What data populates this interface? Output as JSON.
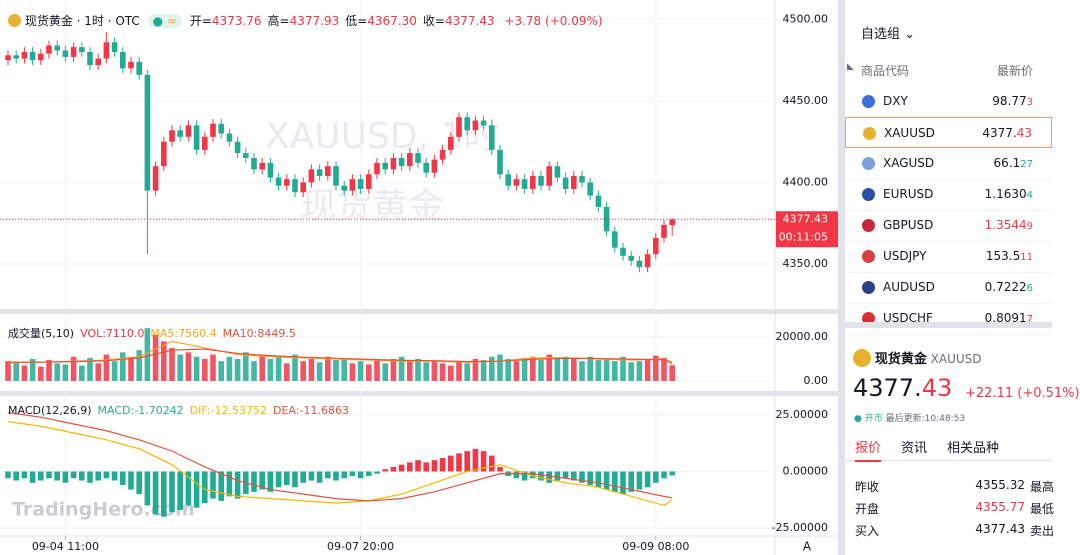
{
  "header": {
    "title": "现货黄金 · 1时 · OTC",
    "pill": "≈",
    "ohlc": [
      {
        "label": "开=",
        "value": "4373.76"
      },
      {
        "label": "高=",
        "value": "4377.93"
      },
      {
        "label": "低=",
        "value": "4367.30"
      },
      {
        "label": "收=",
        "value": "4377.43"
      }
    ],
    "change": "+3.78 (+0.09%)"
  },
  "watermark": {
    "symbol": "XAUUSD, 1时",
    "name": "现货黄金"
  },
  "logo": "TradingHero.com",
  "countdown": "00:11:05",
  "auto_button": "A",
  "chart_data": [
    {
      "type": "candlestick",
      "up_color": "#f23645",
      "down_color": "#22ab94",
      "last_price_line": true,
      "open": [
        4475,
        4478,
        4476,
        4480,
        4475,
        4479,
        4484,
        4481,
        4477,
        4483,
        4480,
        4472,
        4476,
        4486,
        4480,
        4470,
        4474,
        4466,
        4395,
        4410,
        4425,
        4432,
        4428,
        4435,
        4420,
        4428,
        4436,
        4430,
        4425,
        4418,
        4415,
        4408,
        4412,
        4403,
        4398,
        4402,
        4394,
        4400,
        4408,
        4404,
        4410,
        4398,
        4395,
        4402,
        4396,
        4405,
        4412,
        4408,
        4415,
        4410,
        4418,
        4412,
        4406,
        4414,
        4420,
        4428,
        4440,
        4432,
        4438,
        4435,
        4420,
        4405,
        4398,
        4402,
        4396,
        4404,
        4398,
        4410,
        4403,
        4396,
        4404,
        4400,
        4392,
        4385,
        4370,
        4360,
        4355,
        4352,
        4348,
        4356,
        4366,
        4373.76
      ],
      "high": [
        4481,
        4481,
        4483,
        4483,
        4482,
        4487,
        4487,
        4484,
        4486,
        4486,
        4483,
        4479,
        4492,
        4489,
        4483,
        4477,
        4477,
        4469,
        4413,
        4428,
        4435,
        4435,
        4438,
        4438,
        4431,
        4439,
        4439,
        4433,
        4428,
        4421,
        4418,
        4415,
        4415,
        4406,
        4405,
        4405,
        4403,
        4411,
        4411,
        4413,
        4413,
        4401,
        4405,
        4405,
        4408,
        4415,
        4415,
        4418,
        4418,
        4421,
        4421,
        4415,
        4417,
        4423,
        4431,
        4443,
        4443,
        4441,
        4441,
        4438,
        4423,
        4408,
        4405,
        4405,
        4407,
        4407,
        4413,
        4413,
        4406,
        4407,
        4407,
        4403,
        4395,
        4388,
        4373,
        4363,
        4358,
        4355,
        4359,
        4369,
        4377,
        4377.93
      ],
      "low": [
        4472,
        4473,
        4473,
        4472,
        4472,
        4476,
        4478,
        4474,
        4474,
        4477,
        4469,
        4469,
        4473,
        4477,
        4467,
        4467,
        4463,
        4356,
        4392,
        4407,
        4422,
        4425,
        4425,
        4417,
        4417,
        4425,
        4427,
        4422,
        4415,
        4412,
        4405,
        4405,
        4400,
        4395,
        4395,
        4391,
        4391,
        4397,
        4401,
        4401,
        4395,
        4392,
        4392,
        4393,
        4393,
        4402,
        4405,
        4405,
        4407,
        4407,
        4409,
        4403,
        4403,
        4411,
        4417,
        4425,
        4429,
        4429,
        4432,
        4417,
        4402,
        4395,
        4395,
        4393,
        4393,
        4395,
        4395,
        4400,
        4393,
        4393,
        4397,
        4389,
        4382,
        4367,
        4357,
        4352,
        4349,
        4345,
        4345,
        4353,
        4363,
        4367.3
      ],
      "close": [
        4478,
        4476,
        4480,
        4475,
        4479,
        4484,
        4481,
        4477,
        4483,
        4480,
        4472,
        4476,
        4486,
        4480,
        4470,
        4474,
        4466,
        4395,
        4410,
        4425,
        4432,
        4428,
        4435,
        4420,
        4428,
        4436,
        4430,
        4425,
        4418,
        4415,
        4408,
        4412,
        4403,
        4398,
        4402,
        4394,
        4400,
        4408,
        4404,
        4410,
        4398,
        4395,
        4402,
        4396,
        4405,
        4412,
        4408,
        4415,
        4410,
        4418,
        4412,
        4406,
        4414,
        4420,
        4428,
        4440,
        4432,
        4438,
        4435,
        4420,
        4405,
        4398,
        4402,
        4396,
        4404,
        4398,
        4410,
        4403,
        4396,
        4404,
        4400,
        4392,
        4385,
        4370,
        4360,
        4355,
        4352,
        4348,
        4356,
        4366,
        4374,
        4377.43
      ],
      "ylim": [
        4323,
        4507
      ],
      "yticks": [
        {
          "value": 4500,
          "label": "4500.00"
        },
        {
          "value": 4450,
          "label": "4450.00"
        },
        {
          "value": 4400,
          "label": "4400.00"
        },
        {
          "value": 4350,
          "label": "4350.00"
        }
      ]
    },
    {
      "type": "volume",
      "legend": [
        {
          "text": "成交量(5,10)",
          "color": "#131722"
        },
        {
          "text": "VOL:7110.0",
          "color": "#f23645"
        },
        {
          "text": "MA5:7560.4",
          "color": "#f5a623"
        },
        {
          "text": "MA10:8449.5",
          "color": "#e0533d"
        }
      ],
      "values": [
        9000,
        8500,
        7000,
        10000,
        6500,
        9500,
        8000,
        7500,
        11000,
        7000,
        10500,
        8000,
        12000,
        9000,
        13000,
        11000,
        14000,
        24000,
        21000,
        18000,
        15000,
        12000,
        13000,
        11000,
        10000,
        12000,
        9000,
        11000,
        10000,
        13000,
        9000,
        12000,
        10000,
        11000,
        8000,
        12000,
        9000,
        10000,
        8500,
        11000,
        9500,
        10000,
        8000,
        9000,
        7500,
        9500,
        8000,
        10000,
        11000,
        9000,
        10000,
        8500,
        9000,
        8000,
        7000,
        9000,
        8000,
        10000,
        9500,
        11000,
        12000,
        10000,
        9000,
        10500,
        11000,
        9500,
        12000,
        10000,
        11000,
        10500,
        9000,
        11000,
        9500,
        10000,
        9000,
        11000,
        8500,
        9000,
        10000,
        11500,
        10500,
        7110
      ],
      "series": [
        {
          "color": "#f5a623",
          "x": [
            0,
            4,
            8,
            12,
            16,
            20,
            24,
            28,
            32,
            36,
            40,
            44,
            48,
            52,
            56,
            60,
            64,
            68,
            72,
            76,
            80,
            81
          ],
          "values": [
            8200,
            8500,
            9000,
            9500,
            11000,
            18000,
            15000,
            12000,
            11000,
            10500,
            10000,
            9500,
            9000,
            9000,
            8500,
            9000,
            10500,
            10500,
            10000,
            9500,
            10000,
            7560.4
          ]
        },
        {
          "color": "#e0533d",
          "x": [
            0,
            4,
            8,
            12,
            16,
            20,
            24,
            28,
            32,
            36,
            40,
            44,
            48,
            52,
            56,
            60,
            64,
            68,
            72,
            76,
            80,
            81
          ],
          "values": [
            8500,
            8600,
            8800,
            9200,
            10500,
            14000,
            14500,
            12500,
            11500,
            10800,
            10300,
            9800,
            9400,
            9200,
            8800,
            9000,
            9800,
            10300,
            10200,
            9900,
            9700,
            8449.5
          ]
        }
      ],
      "ylim": [
        0,
        29500
      ],
      "yticks": [
        {
          "value": 20000,
          "label": "20000.00"
        },
        {
          "value": 0,
          "label": "0.00"
        }
      ]
    },
    {
      "type": "macd",
      "up_color": "#f23645",
      "down_color": "#22ab94",
      "legend": [
        {
          "text": "MACD(12,26,9)",
          "color": "#131722"
        },
        {
          "text": "MACD:-1.70242",
          "color": "#22ab94"
        },
        {
          "text": "DIF:-12.53752",
          "color": "#f5b800"
        },
        {
          "text": "DEA:-11.6863",
          "color": "#e0533d"
        }
      ],
      "histogram": [
        -3,
        -4,
        -3,
        -5,
        -4,
        -3,
        -4,
        -5,
        -3,
        -4,
        -5,
        -4,
        -3,
        -4,
        -6,
        -8,
        -10,
        -15,
        -19,
        -20,
        -18,
        -17,
        -15,
        -16,
        -14,
        -12,
        -13,
        -11,
        -12,
        -10,
        -9,
        -8,
        -9,
        -7,
        -6,
        -7,
        -5,
        -4,
        -5,
        -3,
        -4,
        -3,
        -2,
        -3,
        -2,
        -1,
        1,
        2,
        3,
        4,
        5,
        4,
        5,
        6,
        7,
        8,
        9,
        10,
        9,
        7,
        2,
        -2,
        -3,
        -4,
        -3,
        -4,
        -5,
        -4,
        -3,
        -4,
        -5,
        -6,
        -7,
        -8,
        -9,
        -10,
        -9,
        -8,
        -7,
        -5,
        -3,
        -1.70242
      ],
      "series": [
        {
          "color": "#f5b800",
          "x": [
            0,
            4,
            8,
            12,
            16,
            20,
            24,
            28,
            32,
            36,
            40,
            44,
            48,
            52,
            56,
            60,
            64,
            68,
            72,
            76,
            80,
            81
          ],
          "values": [
            22,
            20,
            17,
            14,
            10,
            3,
            -8,
            -11,
            -12,
            -13,
            -14,
            -13,
            -10,
            -5,
            0,
            3,
            -2,
            -5,
            -7,
            -11,
            -15,
            -12.53752
          ]
        },
        {
          "color": "#e0533d",
          "x": [
            0,
            4,
            8,
            12,
            16,
            20,
            24,
            28,
            32,
            36,
            40,
            44,
            48,
            52,
            56,
            60,
            64,
            68,
            72,
            76,
            80,
            81
          ],
          "values": [
            26,
            24,
            21,
            18,
            14,
            9,
            2,
            -4,
            -8,
            -10,
            -12,
            -13,
            -12,
            -9,
            -5,
            -1,
            -1,
            -3,
            -5,
            -8,
            -11,
            -11.6863
          ]
        }
      ],
      "ylim": [
        -27.2,
        31.6
      ],
      "yticks": [
        {
          "value": 25,
          "label": "25.00000"
        },
        {
          "value": 0,
          "label": "0.00000"
        },
        {
          "value": -25,
          "label": "-25.00000"
        }
      ],
      "xticks": [
        {
          "value": 7,
          "label": "09-04 11:00"
        },
        {
          "value": 43,
          "label": "09-07 20:00"
        },
        {
          "value": 79,
          "label": "09-09 08:00"
        }
      ]
    }
  ],
  "watchlist": {
    "title": "自选组",
    "chevron": "⌄",
    "columns": [
      "商品代码",
      "最新价"
    ],
    "rows": [
      {
        "symbol": "DXY",
        "price": "98.77",
        "pip": "3",
        "color": "#f23645",
        "icon": "#3a6fd8"
      },
      {
        "symbol": "XAUUSD",
        "price": "4377.",
        "pip": "43",
        "color": "#f23645",
        "icon": "#e8b22e"
      },
      {
        "symbol": "XAGUSD",
        "price": "66.1",
        "pip": "27",
        "color": "#22ab94",
        "icon": "#7b9fd6"
      },
      {
        "symbol": "EURUSD",
        "price": "1.1630",
        "pip": "4",
        "color": "#22ab94",
        "icon": "#2a4fa8"
      },
      {
        "symbol": "GBPUSD",
        "price": "1.3544",
        "pip": "9",
        "color": "#f23645",
        "icon": "#c8283c",
        "pricecolor": "#f23645"
      },
      {
        "symbol": "USDJPY",
        "price": "153.5",
        "pip": "11",
        "color": "#f23645",
        "icon": "#d84040"
      },
      {
        "symbol": "AUDUSD",
        "price": "0.7222",
        "pip": "6",
        "color": "#22ab94",
        "icon": "#2a3f8a"
      },
      {
        "symbol": "USDCHF",
        "price": "0.8091",
        "pip": "7",
        "color": "#f23645",
        "icon": "#d83030"
      }
    ]
  },
  "quote": {
    "name": "现货黄金",
    "symbol": "XAUUSD",
    "price_main": "4377.",
    "price_pip": "43",
    "change": "+22.11 (+0.51%)",
    "status": "开市",
    "updated": "最后更新:10:48:53",
    "tabs": [
      "报价",
      "资讯",
      "相关品种"
    ],
    "stats": [
      {
        "label": "昨收",
        "value": "4355.32",
        "label2": "最高"
      },
      {
        "label": "开盘",
        "value": "4355.77",
        "label2": "最低"
      },
      {
        "label": "买入",
        "value": "4377.43",
        "label2": "卖出"
      }
    ]
  }
}
